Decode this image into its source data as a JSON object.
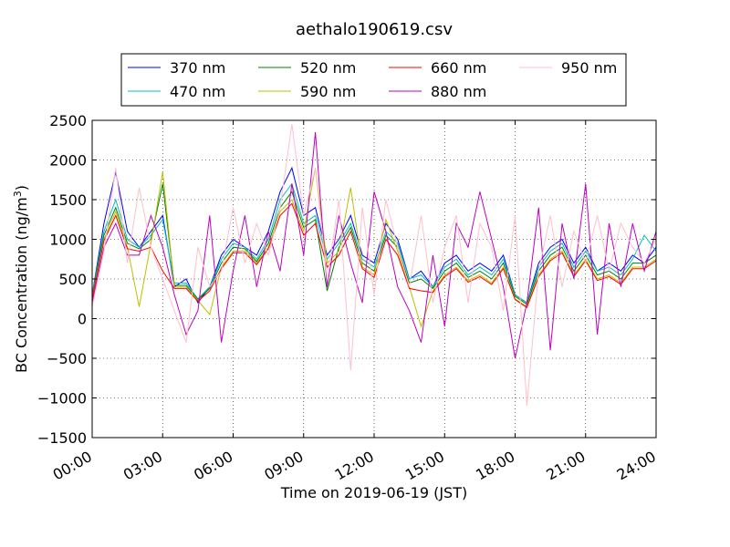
{
  "chart_data": {
    "type": "line",
    "title": "aethalo190619.csv",
    "xlabel": "Time on 2019-06-19 (JST)",
    "ylabel": "BC Concentration (ng/m³)",
    "ylabel_main": "BC Concentration (ng/m",
    "ylabel_sup": "3",
    "ylabel_end": ")",
    "xlim": [
      0,
      24
    ],
    "ylim": [
      -1500,
      2500
    ],
    "grid": true,
    "legend_position": "top",
    "x_ticks": [
      0,
      3,
      6,
      9,
      12,
      15,
      18,
      21,
      24
    ],
    "x_tick_labels": [
      "00:00",
      "03:00",
      "06:00",
      "09:00",
      "12:00",
      "15:00",
      "18:00",
      "21:00",
      "24:00"
    ],
    "y_ticks": [
      -1500,
      -1000,
      -500,
      0,
      500,
      1000,
      1500,
      2000,
      2500
    ],
    "y_tick_labels": [
      "−1500",
      "−1000",
      "−500",
      "0",
      "500",
      "1000",
      "1500",
      "2000",
      "2500"
    ],
    "x": [
      0.0,
      0.5,
      1.0,
      1.5,
      2.0,
      2.5,
      3.0,
      3.5,
      4.0,
      4.5,
      5.0,
      5.5,
      6.0,
      6.5,
      7.0,
      7.5,
      8.0,
      8.5,
      9.0,
      9.5,
      10.0,
      10.5,
      11.0,
      11.5,
      12.0,
      12.5,
      13.0,
      13.5,
      14.0,
      14.5,
      15.0,
      15.5,
      16.0,
      16.5,
      17.0,
      17.5,
      18.0,
      18.5,
      19.0,
      19.5,
      20.0,
      20.5,
      21.0,
      21.5,
      22.0,
      22.5,
      23.0,
      23.5,
      24.0
    ],
    "series": [
      {
        "name": "370 nm",
        "color": "#0000ff",
        "values": [
          300,
          1200,
          1850,
          1100,
          900,
          1100,
          1300,
          400,
          500,
          200,
          400,
          800,
          1000,
          900,
          800,
          1100,
          1600,
          1900,
          1300,
          1400,
          800,
          1000,
          1300,
          800,
          700,
          1200,
          1000,
          500,
          600,
          400,
          700,
          800,
          600,
          700,
          600,
          800,
          300,
          200,
          700,
          900,
          1000,
          700,
          900,
          600,
          700,
          600,
          800,
          700,
          900
        ]
      },
      {
        "name": "470 nm",
        "color": "#00bfbf",
        "values": [
          300,
          1100,
          1500,
          1000,
          900,
          1050,
          1250,
          450,
          450,
          250,
          400,
          750,
          950,
          900,
          750,
          1000,
          1500,
          1700,
          1200,
          1300,
          750,
          950,
          1200,
          750,
          650,
          1100,
          950,
          500,
          550,
          400,
          650,
          750,
          550,
          650,
          550,
          750,
          300,
          200,
          650,
          850,
          950,
          650,
          850,
          600,
          650,
          550,
          750,
          1050,
          850
        ]
      },
      {
        "name": "520 nm",
        "color": "#008000",
        "values": [
          280,
          1050,
          1400,
          950,
          880,
          1000,
          1700,
          420,
          420,
          240,
          380,
          700,
          900,
          880,
          720,
          950,
          1400,
          1600,
          1150,
          1250,
          350,
          900,
          1150,
          700,
          600,
          1050,
          900,
          450,
          500,
          380,
          600,
          700,
          520,
          600,
          500,
          700,
          280,
          180,
          600,
          800,
          900,
          600,
          800,
          550,
          600,
          500,
          700,
          700,
          800
        ]
      },
      {
        "name": "590 nm",
        "color": "#bfbf00",
        "values": [
          260,
          1000,
          1350,
          900,
          150,
          950,
          1850,
          400,
          400,
          230,
          50,
          650,
          850,
          850,
          700,
          900,
          1350,
          1500,
          1100,
          1900,
          700,
          850,
          1650,
          650,
          550,
          1250,
          850,
          400,
          -100,
          350,
          550,
          650,
          480,
          550,
          450,
          650,
          250,
          150,
          550,
          750,
          850,
          550,
          750,
          500,
          550,
          450,
          650,
          650,
          750
        ]
      },
      {
        "name": "660 nm",
        "color": "#ff0000",
        "values": [
          250,
          980,
          1300,
          880,
          850,
          900,
          600,
          380,
          380,
          220,
          350,
          630,
          830,
          830,
          680,
          880,
          1300,
          1450,
          1050,
          1200,
          650,
          800,
          1100,
          630,
          520,
          1000,
          800,
          380,
          350,
          330,
          530,
          630,
          460,
          530,
          430,
          630,
          240,
          140,
          530,
          730,
          830,
          530,
          730,
          480,
          530,
          430,
          630,
          630,
          730
        ]
      },
      {
        "name": "880 nm",
        "color": "#bf00bf",
        "values": [
          200,
          900,
          1200,
          800,
          800,
          1300,
          900,
          300,
          -200,
          100,
          1300,
          -300,
          600,
          1300,
          400,
          1100,
          600,
          1700,
          800,
          2350,
          400,
          1300,
          700,
          200,
          1600,
          1100,
          400,
          100,
          -300,
          800,
          -100,
          1200,
          900,
          1600,
          1000,
          400,
          -500,
          200,
          1400,
          -400,
          1200,
          500,
          1700,
          -200,
          1200,
          400,
          1200,
          600,
          1100
        ]
      },
      {
        "name": "950 nm",
        "color": "#ffc0cb",
        "values": [
          150,
          850,
          1900,
          700,
          1650,
          900,
          500,
          100,
          -300,
          900,
          400,
          600,
          1400,
          700,
          1200,
          800,
          1400,
          2450,
          1300,
          1900,
          500,
          1500,
          -650,
          1400,
          300,
          1500,
          900,
          400,
          1300,
          200,
          900,
          1300,
          200,
          1200,
          900,
          100,
          1300,
          -1100,
          600,
          1300,
          400,
          1100,
          700,
          1300,
          600,
          1200,
          900,
          700,
          1000
        ]
      }
    ]
  }
}
